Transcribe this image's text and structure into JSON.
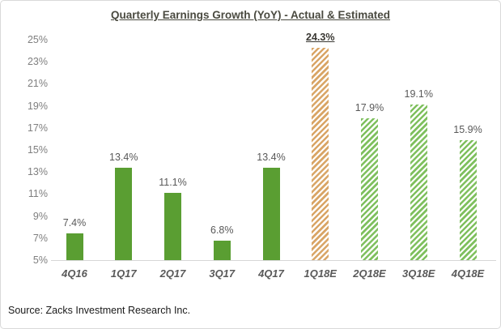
{
  "title": "Quarterly Earnings Growth (YoY) - Actual & Estimated",
  "source_note": "Source: Zacks Investment Research Inc.",
  "colors": {
    "title_text": "#4a4a40",
    "actual_bar": "#5a9e32",
    "estimate_highlight_stripe": "#d9a566",
    "estimate_stripe": "#7fc05e",
    "data_label_gray": "#595959",
    "emphasis_label": "#3a3833",
    "ytick_gray": "#7f7f7f",
    "xtick_gray": "#595959",
    "axis_line": "#d6d6d6"
  },
  "chart_data": {
    "type": "bar",
    "title": "Quarterly Earnings Growth (YoY) - Actual & Estimated",
    "categories": [
      "4Q16",
      "1Q17",
      "2Q17",
      "3Q17",
      "4Q17",
      "1Q18E",
      "2Q18E",
      "3Q18E",
      "4Q18E"
    ],
    "values": [
      7.4,
      13.4,
      11.1,
      6.8,
      13.4,
      24.3,
      17.9,
      19.1,
      15.9
    ],
    "data_labels": [
      "7.4%",
      "13.4%",
      "11.1%",
      "6.8%",
      "13.4%",
      "24.3%",
      "17.9%",
      "19.1%",
      "15.9%"
    ],
    "bar_styles": [
      "actual",
      "actual",
      "actual",
      "actual",
      "actual",
      "estimate-highlight",
      "estimate",
      "estimate",
      "estimate"
    ],
    "series_note": "solid green = actual quarters, hatched = estimated quarters, orange hatched = current quarter estimate (emphasized label)",
    "xlabel": "",
    "ylabel": "",
    "ylim": [
      5,
      25
    ],
    "ytick_step": 2,
    "ytick_labels": [
      "25%",
      "23%",
      "21%",
      "19%",
      "17%",
      "15%",
      "13%",
      "11%",
      "9%",
      "7%",
      "5%"
    ],
    "grid": false,
    "legend": "none"
  }
}
